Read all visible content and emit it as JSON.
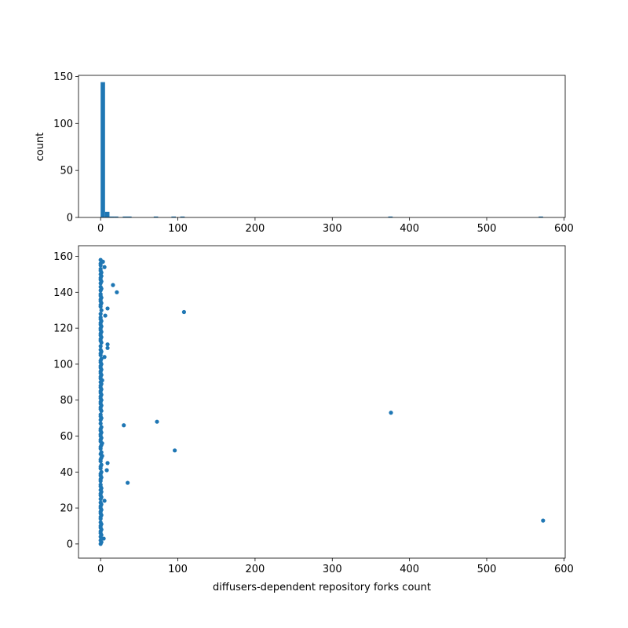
{
  "chart_data": [
    {
      "type": "bar",
      "subtype": "histogram",
      "bins": 100,
      "source": "same x values as scatter",
      "ylabel": "count",
      "xlabel": "",
      "xlim": [
        -28.65,
        601.65
      ],
      "ylim": [
        0,
        151.2
      ],
      "xticks": [
        0,
        100,
        200,
        300,
        400,
        500,
        600
      ],
      "yticks": [
        0,
        50,
        100,
        150
      ],
      "color": "#1f77b4",
      "grid": false
    },
    {
      "type": "scatter",
      "xlabel": "diffusers-dependent repository forks count",
      "ylabel": "",
      "xlim": [
        -28.65,
        601.65
      ],
      "ylim": [
        -7.9,
        165.9
      ],
      "xticks": [
        0,
        100,
        200,
        300,
        400,
        500,
        600
      ],
      "yticks": [
        0,
        20,
        40,
        60,
        80,
        100,
        120,
        140,
        160
      ],
      "color": "#1f77b4",
      "grid": false,
      "y_is_index": true,
      "x": [
        0,
        1,
        0,
        4,
        0,
        1,
        0,
        0,
        1,
        0,
        0,
        1,
        0,
        573,
        0,
        0,
        1,
        0,
        0,
        1,
        0,
        0,
        1,
        0,
        5,
        0,
        1,
        0,
        0,
        1,
        0,
        1,
        0,
        0,
        35,
        0,
        0,
        1,
        0,
        0,
        1,
        8,
        0,
        0,
        1,
        9,
        0,
        0,
        1,
        2,
        0,
        1,
        96,
        0,
        0,
        1,
        2,
        0,
        0,
        1,
        0,
        0,
        1,
        0,
        0,
        1,
        30,
        0,
        73,
        0,
        1,
        0,
        0,
        376,
        1,
        0,
        0,
        1,
        0,
        0,
        1,
        0,
        0,
        1,
        0,
        0,
        1,
        0,
        0,
        1,
        0,
        2,
        0,
        0,
        1,
        0,
        0,
        1,
        0,
        0,
        1,
        0,
        0,
        1,
        5,
        0,
        0,
        1,
        0,
        9,
        0,
        9,
        1,
        0,
        0,
        1,
        0,
        0,
        1,
        0,
        0,
        1,
        0,
        0,
        1,
        0,
        0,
        6,
        0,
        108,
        1,
        9,
        0,
        0,
        1,
        0,
        0,
        1,
        0,
        0,
        21,
        0,
        1,
        0,
        16,
        0,
        1,
        0,
        0,
        1,
        0,
        1,
        0,
        0,
        5,
        0,
        0,
        3,
        0
      ]
    }
  ]
}
